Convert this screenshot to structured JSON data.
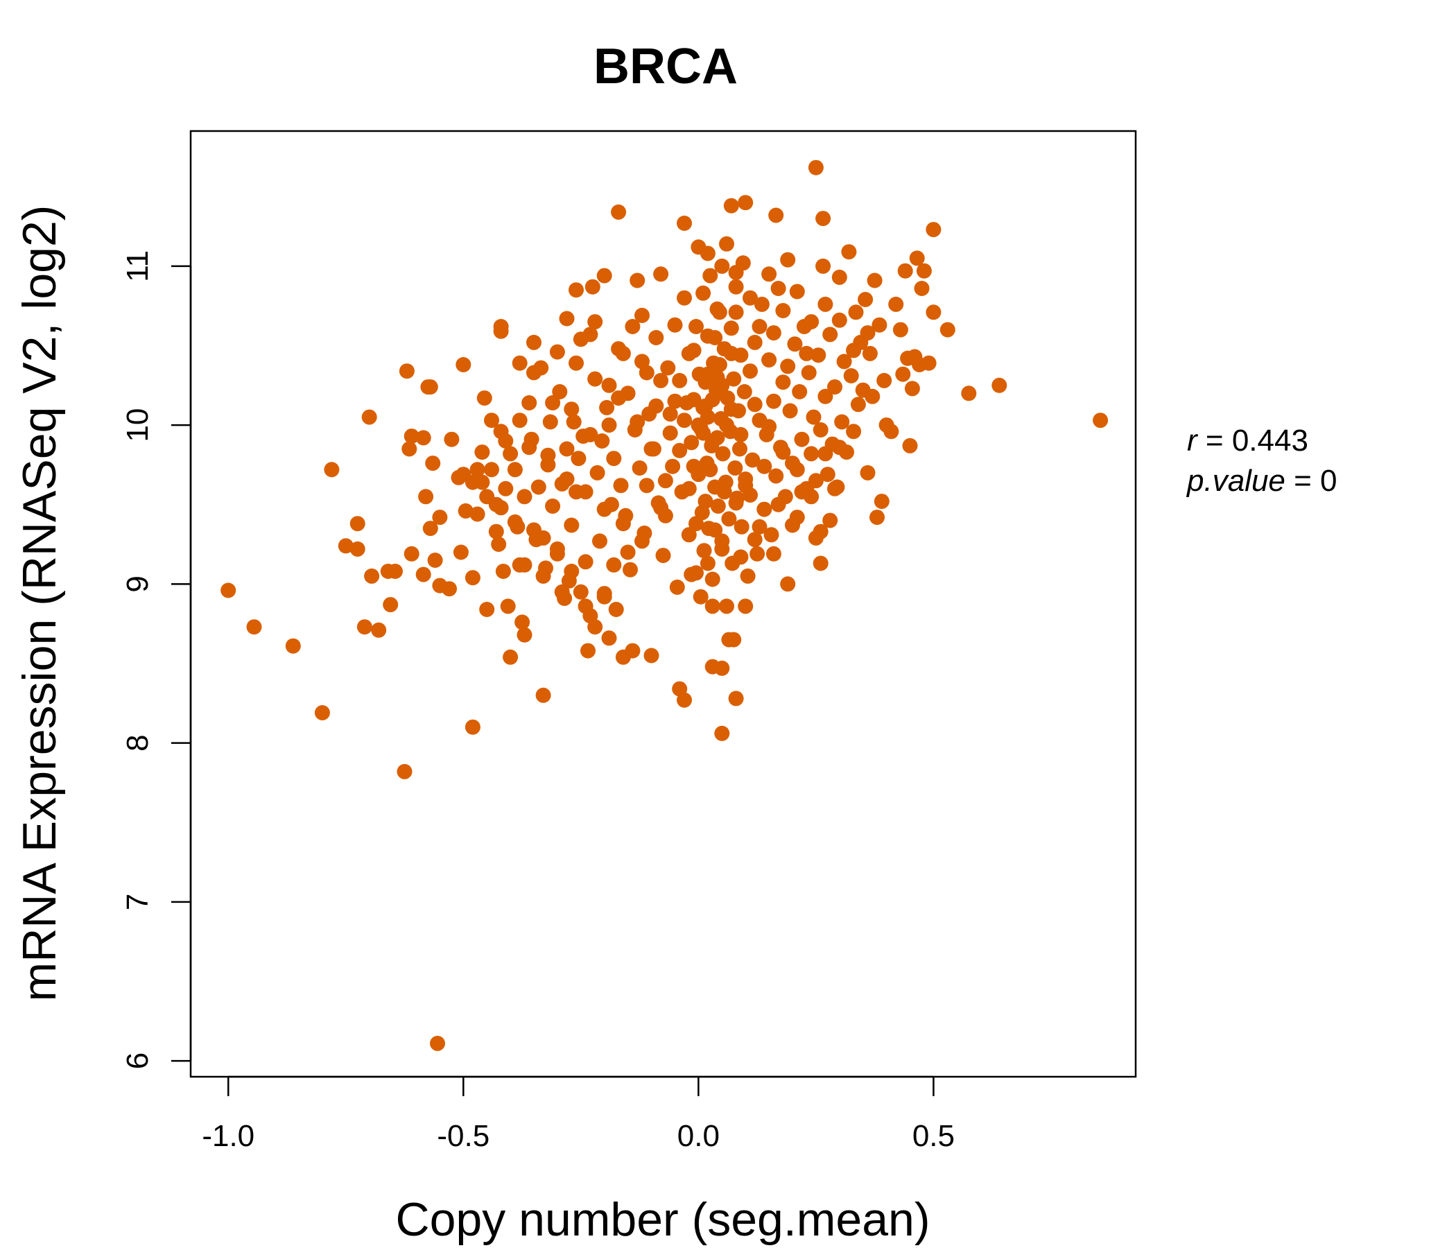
{
  "chart_data": {
    "type": "scatter",
    "title": "BRCA",
    "xlabel": "Copy number (seg.mean)",
    "ylabel": "mRNA Expression (RNASeq V2, log2)",
    "xlim": [
      -1.08,
      0.93
    ],
    "ylim": [
      5.9,
      11.85
    ],
    "x_ticks": [
      -1.0,
      -0.5,
      0.0,
      0.5
    ],
    "x_tick_labels": [
      "-1.0",
      "-0.5",
      "0.0",
      "0.5"
    ],
    "y_ticks": [
      6,
      7,
      8,
      9,
      10,
      11
    ],
    "y_tick_labels": [
      "6",
      "7",
      "8",
      "9",
      "10",
      "11"
    ],
    "grid": false,
    "point_color": "#D95F02",
    "stats": {
      "r_label": "r",
      "r_value": "0.443",
      "p_label": "p.value",
      "p_value": "0"
    },
    "points": [
      [
        -1.0,
        8.96
      ],
      [
        -0.945,
        8.73
      ],
      [
        -0.862,
        8.61
      ],
      [
        -0.8,
        8.19
      ],
      [
        -0.78,
        9.72
      ],
      [
        -0.75,
        9.24
      ],
      [
        -0.725,
        9.38
      ],
      [
        -0.725,
        9.22
      ],
      [
        -0.7,
        10.05
      ],
      [
        -0.71,
        8.73
      ],
      [
        -0.695,
        9.05
      ],
      [
        -0.68,
        8.71
      ],
      [
        -0.66,
        9.08
      ],
      [
        -0.655,
        8.87
      ],
      [
        -0.645,
        9.08
      ],
      [
        -0.625,
        7.82
      ],
      [
        -0.62,
        10.34
      ],
      [
        -0.615,
        9.85
      ],
      [
        -0.61,
        9.19
      ],
      [
        -0.61,
        9.93
      ],
      [
        -0.585,
        9.92
      ],
      [
        -0.585,
        9.06
      ],
      [
        -0.58,
        9.55
      ],
      [
        -0.575,
        10.24
      ],
      [
        -0.57,
        9.35
      ],
      [
        -0.565,
        9.76
      ],
      [
        -0.56,
        9.15
      ],
      [
        -0.555,
        6.11
      ],
      [
        -0.55,
        8.99
      ],
      [
        -0.53,
        8.97
      ],
      [
        -0.525,
        9.91
      ],
      [
        -0.51,
        9.67
      ],
      [
        -0.505,
        9.2
      ],
      [
        -0.5,
        10.38
      ],
      [
        -0.495,
        9.46
      ],
      [
        -0.48,
        9.04
      ],
      [
        -0.48,
        8.1
      ],
      [
        -0.47,
        9.72
      ],
      [
        -0.46,
        9.64
      ],
      [
        -0.455,
        10.17
      ],
      [
        -0.45,
        8.84
      ],
      [
        -0.44,
        10.03
      ],
      [
        -0.43,
        9.5
      ],
      [
        -0.425,
        9.25
      ],
      [
        -0.42,
        9.96
      ],
      [
        -0.42,
        10.59
      ],
      [
        -0.415,
        9.08
      ],
      [
        -0.41,
        9.6
      ],
      [
        -0.405,
        8.86
      ],
      [
        -0.4,
        8.54
      ],
      [
        -0.39,
        9.72
      ],
      [
        -0.385,
        9.36
      ],
      [
        -0.38,
        9.12
      ],
      [
        -0.375,
        8.76
      ],
      [
        -0.37,
        8.68
      ],
      [
        -0.37,
        9.55
      ],
      [
        -0.36,
        10.14
      ],
      [
        -0.355,
        9.91
      ],
      [
        -0.35,
        10.33
      ],
      [
        -0.345,
        9.28
      ],
      [
        -0.34,
        9.61
      ],
      [
        -0.335,
        10.36
      ],
      [
        -0.33,
        8.3
      ],
      [
        -0.325,
        9.1
      ],
      [
        -0.32,
        9.81
      ],
      [
        -0.315,
        10.02
      ],
      [
        -0.31,
        9.49
      ],
      [
        -0.3,
        9.19
      ],
      [
        -0.295,
        10.21
      ],
      [
        -0.29,
        9.63
      ],
      [
        -0.285,
        8.91
      ],
      [
        -0.28,
        9.85
      ],
      [
        -0.275,
        9.02
      ],
      [
        -0.27,
        9.37
      ],
      [
        -0.265,
        10.02
      ],
      [
        -0.26,
        9.58
      ],
      [
        -0.255,
        9.79
      ],
      [
        -0.25,
        10.54
      ],
      [
        -0.245,
        9.93
      ],
      [
        -0.24,
        9.14
      ],
      [
        -0.235,
        8.58
      ],
      [
        -0.23,
        10.57
      ],
      [
        -0.225,
        10.87
      ],
      [
        -0.22,
        10.65
      ],
      [
        -0.215,
        9.7
      ],
      [
        -0.21,
        9.27
      ],
      [
        -0.205,
        9.9
      ],
      [
        -0.2,
        8.94
      ],
      [
        -0.195,
        10.11
      ],
      [
        -0.19,
        10.25
      ],
      [
        -0.185,
        9.5
      ],
      [
        -0.18,
        9.79
      ],
      [
        -0.175,
        8.84
      ],
      [
        -0.17,
        10.48
      ],
      [
        -0.165,
        9.62
      ],
      [
        -0.16,
        8.54
      ],
      [
        -0.155,
        9.43
      ],
      [
        -0.15,
        10.2
      ],
      [
        -0.145,
        9.09
      ],
      [
        -0.14,
        8.58
      ],
      [
        -0.135,
        9.97
      ],
      [
        -0.13,
        10.91
      ],
      [
        -0.125,
        9.73
      ],
      [
        -0.12,
        10.69
      ],
      [
        -0.115,
        9.32
      ],
      [
        -0.11,
        9.62
      ],
      [
        -0.105,
        10.07
      ],
      [
        -0.1,
        8.55
      ],
      [
        -0.095,
        9.85
      ],
      [
        -0.09,
        10.55
      ],
      [
        -0.085,
        9.51
      ],
      [
        -0.08,
        10.95
      ],
      [
        -0.075,
        9.18
      ],
      [
        -0.07,
        9.43
      ],
      [
        -0.065,
        10.36
      ],
      [
        -0.06,
        10.07
      ],
      [
        -0.055,
        9.74
      ],
      [
        -0.05,
        10.63
      ],
      [
        -0.045,
        8.98
      ],
      [
        -0.04,
        10.28
      ],
      [
        -0.035,
        9.58
      ],
      [
        -0.03,
        11.27
      ],
      [
        -0.025,
        10.14
      ],
      [
        -0.02,
        9.31
      ],
      [
        -0.015,
        9.89
      ],
      [
        -0.01,
        10.47
      ],
      [
        -0.005,
        9.07
      ],
      [
        0.0,
        9.69
      ],
      [
        0.002,
        10.32
      ],
      [
        0.005,
        9.98
      ],
      [
        0.008,
        9.45
      ],
      [
        0.01,
        10.83
      ],
      [
        0.012,
        9.21
      ],
      [
        0.015,
        10.12
      ],
      [
        0.018,
        9.76
      ],
      [
        0.02,
        10.56
      ],
      [
        0.022,
        9.35
      ],
      [
        0.025,
        10.94
      ],
      [
        0.028,
        9.87
      ],
      [
        0.03,
        9.03
      ],
      [
        0.032,
        10.39
      ],
      [
        0.035,
        9.61
      ],
      [
        0.038,
        10.22
      ],
      [
        0.04,
        9.92
      ],
      [
        0.042,
        9.49
      ],
      [
        0.045,
        10.71
      ],
      [
        0.048,
        10.04
      ],
      [
        0.05,
        9.27
      ],
      [
        0.052,
        9.82
      ],
      [
        0.055,
        10.48
      ],
      [
        0.058,
        9.64
      ],
      [
        0.06,
        11.14
      ],
      [
        0.062,
        10.17
      ],
      [
        0.065,
        9.41
      ],
      [
        0.068,
        9.96
      ],
      [
        0.07,
        10.61
      ],
      [
        0.072,
        9.13
      ],
      [
        0.075,
        10.29
      ],
      [
        0.078,
        9.73
      ],
      [
        0.08,
        10.87
      ],
      [
        0.082,
        9.54
      ],
      [
        0.085,
        10.09
      ],
      [
        0.088,
        9.85
      ],
      [
        0.09,
        10.44
      ],
      [
        0.092,
        9.36
      ],
      [
        0.095,
        11.02
      ],
      [
        0.098,
        10.21
      ],
      [
        0.1,
        9.62
      ],
      [
        0.105,
        9.05
      ],
      [
        0.11,
        10.34
      ],
      [
        0.115,
        9.78
      ],
      [
        0.12,
        10.52
      ],
      [
        0.125,
        9.19
      ],
      [
        0.13,
        10.03
      ],
      [
        0.135,
        10.76
      ],
      [
        0.14,
        9.47
      ],
      [
        0.145,
        9.94
      ],
      [
        0.15,
        10.41
      ],
      [
        0.155,
        9.31
      ],
      [
        0.16,
        10.15
      ],
      [
        0.165,
        9.68
      ],
      [
        0.17,
        10.86
      ],
      [
        0.175,
        9.86
      ],
      [
        0.18,
        10.27
      ],
      [
        0.185,
        9.55
      ],
      [
        0.19,
        11.04
      ],
      [
        0.195,
        10.09
      ],
      [
        0.2,
        9.76
      ],
      [
        0.205,
        10.51
      ],
      [
        0.21,
        9.42
      ],
      [
        0.215,
        10.21
      ],
      [
        0.22,
        9.91
      ],
      [
        0.225,
        10.62
      ],
      [
        0.23,
        9.6
      ],
      [
        0.235,
        10.33
      ],
      [
        0.24,
        9.82
      ],
      [
        0.245,
        10.05
      ],
      [
        0.25,
        9.29
      ],
      [
        0.255,
        10.44
      ],
      [
        0.26,
        9.97
      ],
      [
        0.265,
        11.0
      ],
      [
        0.27,
        10.18
      ],
      [
        0.275,
        9.69
      ],
      [
        0.28,
        10.57
      ],
      [
        0.285,
        9.88
      ],
      [
        0.29,
        10.24
      ],
      [
        0.295,
        9.61
      ],
      [
        0.3,
        10.66
      ],
      [
        0.305,
        10.02
      ],
      [
        0.31,
        10.4
      ],
      [
        0.315,
        9.83
      ],
      [
        0.32,
        11.09
      ],
      [
        0.325,
        10.31
      ],
      [
        0.33,
        9.96
      ],
      [
        0.335,
        10.71
      ],
      [
        0.34,
        10.13
      ],
      [
        0.345,
        10.52
      ],
      [
        0.35,
        10.22
      ],
      [
        0.355,
        10.79
      ],
      [
        0.36,
        9.7
      ],
      [
        0.365,
        10.45
      ],
      [
        0.37,
        10.18
      ],
      [
        0.375,
        10.91
      ],
      [
        0.38,
        9.42
      ],
      [
        0.385,
        10.63
      ],
      [
        0.39,
        9.52
      ],
      [
        0.395,
        10.28
      ],
      [
        0.4,
        10.0
      ],
      [
        0.41,
        9.96
      ],
      [
        0.42,
        10.76
      ],
      [
        0.43,
        10.6
      ],
      [
        0.435,
        10.32
      ],
      [
        0.44,
        10.97
      ],
      [
        0.445,
        10.42
      ],
      [
        0.45,
        9.87
      ],
      [
        0.455,
        10.23
      ],
      [
        0.46,
        10.43
      ],
      [
        0.465,
        11.05
      ],
      [
        0.47,
        10.38
      ],
      [
        0.475,
        10.86
      ],
      [
        0.48,
        10.97
      ],
      [
        0.49,
        10.39
      ],
      [
        0.5,
        11.23
      ],
      [
        0.5,
        10.71
      ],
      [
        0.53,
        10.6
      ],
      [
        0.575,
        10.2
      ],
      [
        0.64,
        10.25
      ],
      [
        0.855,
        10.03
      ],
      [
        0.25,
        11.62
      ],
      [
        0.1,
        11.4
      ],
      [
        0.07,
        11.38
      ],
      [
        0.165,
        11.32
      ],
      [
        0.265,
        11.3
      ],
      [
        -0.17,
        11.34
      ],
      [
        0.0,
        11.12
      ],
      [
        0.05,
        11.0
      ],
      [
        0.13,
        10.62
      ],
      [
        -0.2,
        10.94
      ],
      [
        -0.26,
        10.85
      ],
      [
        -0.42,
        10.62
      ],
      [
        -0.57,
        10.24
      ],
      [
        -0.55,
        9.42
      ],
      [
        -0.38,
        10.39
      ],
      [
        -0.28,
        10.67
      ],
      [
        -0.14,
        10.62
      ],
      [
        0.08,
        10.96
      ],
      [
        0.04,
        10.73
      ],
      [
        0.02,
        10.32
      ],
      [
        -0.03,
        10.8
      ],
      [
        0.02,
        11.08
      ],
      [
        0.06,
        10.0
      ],
      [
        0.03,
        9.9
      ],
      [
        0.01,
        9.95
      ],
      [
        0.04,
        10.2
      ],
      [
        0.07,
        10.1
      ],
      [
        -0.01,
        10.16
      ],
      [
        0.015,
        10.27
      ],
      [
        0.035,
        10.55
      ],
      [
        0.045,
        10.38
      ],
      [
        0.025,
        9.72
      ],
      [
        0.055,
        9.58
      ],
      [
        0.015,
        9.52
      ],
      [
        -0.005,
        9.38
      ],
      [
        0.035,
        9.34
      ],
      [
        0.05,
        9.22
      ],
      [
        0.02,
        9.13
      ],
      [
        -0.015,
        9.06
      ],
      [
        0.005,
        8.92
      ],
      [
        0.03,
        8.86
      ],
      [
        0.06,
        8.86
      ],
      [
        0.075,
        8.65
      ],
      [
        0.065,
        8.65
      ],
      [
        0.03,
        8.48
      ],
      [
        0.05,
        8.47
      ],
      [
        0.08,
        8.28
      ],
      [
        -0.04,
        8.34
      ],
      [
        -0.03,
        8.27
      ],
      [
        0.05,
        8.06
      ],
      [
        0.1,
        8.86
      ],
      [
        0.19,
        9.0
      ],
      [
        0.09,
        9.17
      ],
      [
        0.12,
        9.28
      ],
      [
        0.11,
        9.56
      ],
      [
        0.14,
        9.74
      ],
      [
        0.16,
        9.19
      ],
      [
        0.17,
        9.5
      ],
      [
        0.2,
        9.37
      ],
      [
        0.28,
        9.4
      ],
      [
        0.29,
        9.6
      ],
      [
        0.25,
        9.65
      ],
      [
        0.3,
        9.86
      ],
      [
        0.26,
        9.13
      ],
      [
        0.26,
        9.33
      ],
      [
        0.22,
        9.58
      ],
      [
        -0.2,
        8.92
      ],
      [
        -0.24,
        8.86
      ],
      [
        -0.23,
        8.8
      ],
      [
        -0.25,
        8.95
      ],
      [
        -0.27,
        9.08
      ],
      [
        -0.3,
        9.22
      ],
      [
        -0.33,
        9.29
      ],
      [
        -0.35,
        9.34
      ],
      [
        -0.39,
        9.39
      ],
      [
        -0.42,
        9.48
      ],
      [
        -0.45,
        9.55
      ],
      [
        -0.48,
        9.64
      ],
      [
        -0.44,
        9.72
      ],
      [
        -0.4,
        9.82
      ],
      [
        -0.36,
        9.86
      ],
      [
        -0.32,
        9.75
      ],
      [
        -0.28,
        9.66
      ],
      [
        -0.24,
        9.58
      ],
      [
        -0.2,
        9.47
      ],
      [
        -0.16,
        9.38
      ],
      [
        -0.12,
        9.27
      ],
      [
        -0.08,
        9.48
      ],
      [
        -0.07,
        9.65
      ],
      [
        -0.1,
        9.85
      ],
      [
        -0.13,
        10.02
      ],
      [
        -0.17,
        10.17
      ],
      [
        -0.22,
        10.29
      ],
      [
        -0.26,
        10.39
      ],
      [
        -0.3,
        10.46
      ],
      [
        -0.35,
        10.52
      ],
      [
        -0.12,
        10.4
      ],
      [
        -0.08,
        10.28
      ],
      [
        -0.05,
        10.15
      ],
      [
        -0.06,
        9.95
      ],
      [
        -0.09,
        10.12
      ],
      [
        -0.11,
        10.33
      ],
      [
        -0.16,
        10.45
      ],
      [
        -0.19,
        10.0
      ],
      [
        -0.23,
        9.94
      ],
      [
        -0.27,
        10.1
      ],
      [
        -0.31,
        10.14
      ],
      [
        -0.38,
        10.03
      ],
      [
        -0.41,
        9.9
      ],
      [
        -0.46,
        9.83
      ],
      [
        -0.5,
        9.69
      ],
      [
        -0.47,
        9.44
      ],
      [
        -0.43,
        9.33
      ],
      [
        -0.37,
        9.12
      ],
      [
        -0.33,
        9.05
      ],
      [
        -0.29,
        8.95
      ],
      [
        -0.22,
        8.73
      ],
      [
        -0.19,
        8.66
      ],
      [
        -0.18,
        9.12
      ],
      [
        -0.15,
        9.2
      ],
      [
        0.11,
        10.8
      ],
      [
        0.15,
        10.95
      ],
      [
        0.18,
        10.72
      ],
      [
        0.21,
        10.84
      ],
      [
        0.24,
        10.65
      ],
      [
        0.27,
        10.76
      ],
      [
        0.3,
        10.93
      ],
      [
        0.33,
        10.47
      ],
      [
        0.36,
        10.58
      ],
      [
        0.16,
        10.58
      ],
      [
        0.19,
        10.37
      ],
      [
        0.23,
        10.45
      ],
      [
        0.12,
        10.13
      ],
      [
        0.15,
        9.99
      ],
      [
        0.18,
        9.83
      ],
      [
        0.21,
        9.72
      ],
      [
        0.24,
        9.55
      ],
      [
        0.27,
        9.82
      ],
      [
        0.13,
        9.36
      ],
      [
        0.1,
        9.66
      ],
      [
        0.08,
        9.51
      ],
      [
        0.09,
        9.94
      ],
      [
        0.07,
        10.45
      ],
      [
        0.08,
        10.71
      ],
      [
        -0.005,
        10.62
      ],
      [
        -0.02,
        10.45
      ],
      [
        -0.03,
        10.03
      ],
      [
        -0.04,
        9.84
      ],
      [
        -0.02,
        9.6
      ],
      [
        -0.01,
        9.74
      ],
      [
        0.0,
        10.0
      ],
      [
        0.01,
        10.11
      ],
      [
        0.02,
        10.05
      ],
      [
        0.03,
        10.16
      ],
      [
        0.04,
        10.3
      ],
      [
        0.05,
        10.25
      ]
    ]
  }
}
